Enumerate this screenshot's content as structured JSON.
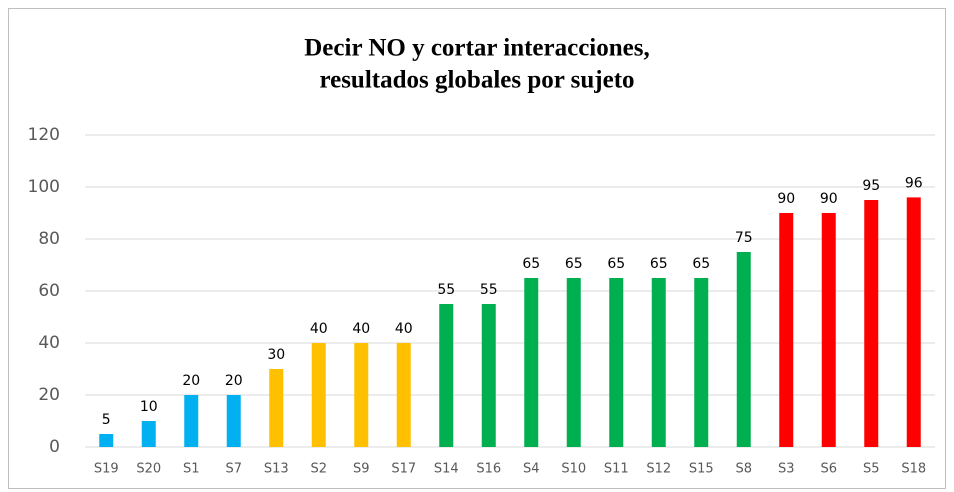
{
  "chart_data": {
    "type": "bar",
    "title": [
      "Decir NO y cortar interacciones,",
      "resultados globales por sujeto"
    ],
    "categories": [
      "S19",
      "S20",
      "S1",
      "S7",
      "S13",
      "S2",
      "S9",
      "S17",
      "S14",
      "S16",
      "S4",
      "S10",
      "S11",
      "S12",
      "S15",
      "S8",
      "S3",
      "S6",
      "S5",
      "S18"
    ],
    "values": [
      5,
      10,
      20,
      20,
      30,
      40,
      40,
      40,
      55,
      55,
      65,
      65,
      65,
      65,
      65,
      75,
      90,
      90,
      95,
      96
    ],
    "colors": [
      "#00b0f0",
      "#00b0f0",
      "#00b0f0",
      "#00b0f0",
      "#ffc000",
      "#ffc000",
      "#ffc000",
      "#ffc000",
      "#00b050",
      "#00b050",
      "#00b050",
      "#00b050",
      "#00b050",
      "#00b050",
      "#00b050",
      "#00b050",
      "#ff0000",
      "#ff0000",
      "#ff0000",
      "#ff0000"
    ],
    "ylim": [
      0,
      120
    ],
    "yticks": [
      0,
      20,
      40,
      60,
      80,
      100,
      120
    ],
    "grid": true
  }
}
